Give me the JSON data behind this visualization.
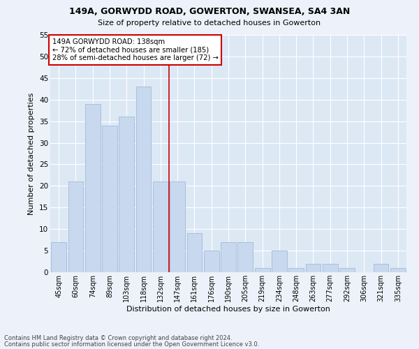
{
  "title": "149A, GORWYDD ROAD, GOWERTON, SWANSEA, SA4 3AN",
  "subtitle": "Size of property relative to detached houses in Gowerton",
  "xlabel": "Distribution of detached houses by size in Gowerton",
  "ylabel": "Number of detached properties",
  "categories": [
    "45sqm",
    "60sqm",
    "74sqm",
    "89sqm",
    "103sqm",
    "118sqm",
    "132sqm",
    "147sqm",
    "161sqm",
    "176sqm",
    "190sqm",
    "205sqm",
    "219sqm",
    "234sqm",
    "248sqm",
    "263sqm",
    "277sqm",
    "292sqm",
    "306sqm",
    "321sqm",
    "335sqm"
  ],
  "values": [
    7,
    21,
    39,
    34,
    36,
    43,
    21,
    21,
    9,
    5,
    7,
    7,
    1,
    5,
    1,
    2,
    2,
    1,
    0,
    2,
    1
  ],
  "bar_color": "#c8d8ee",
  "bar_edge_color": "#a0bcd8",
  "ylim": [
    0,
    55
  ],
  "yticks": [
    0,
    5,
    10,
    15,
    20,
    25,
    30,
    35,
    40,
    45,
    50,
    55
  ],
  "property_line_x": 6.5,
  "annotation_text_line1": "149A GORWYDD ROAD: 138sqm",
  "annotation_text_line2": "← 72% of detached houses are smaller (185)",
  "annotation_text_line3": "28% of semi-detached houses are larger (72) →",
  "annotation_box_facecolor": "#ffffff",
  "annotation_box_edgecolor": "#cc0000",
  "property_line_color": "#cc0000",
  "plot_bg_color": "#dde8f5",
  "fig_bg_color": "#edf2fa",
  "footer_line1": "Contains HM Land Registry data © Crown copyright and database right 2024.",
  "footer_line2": "Contains public sector information licensed under the Open Government Licence v3.0."
}
